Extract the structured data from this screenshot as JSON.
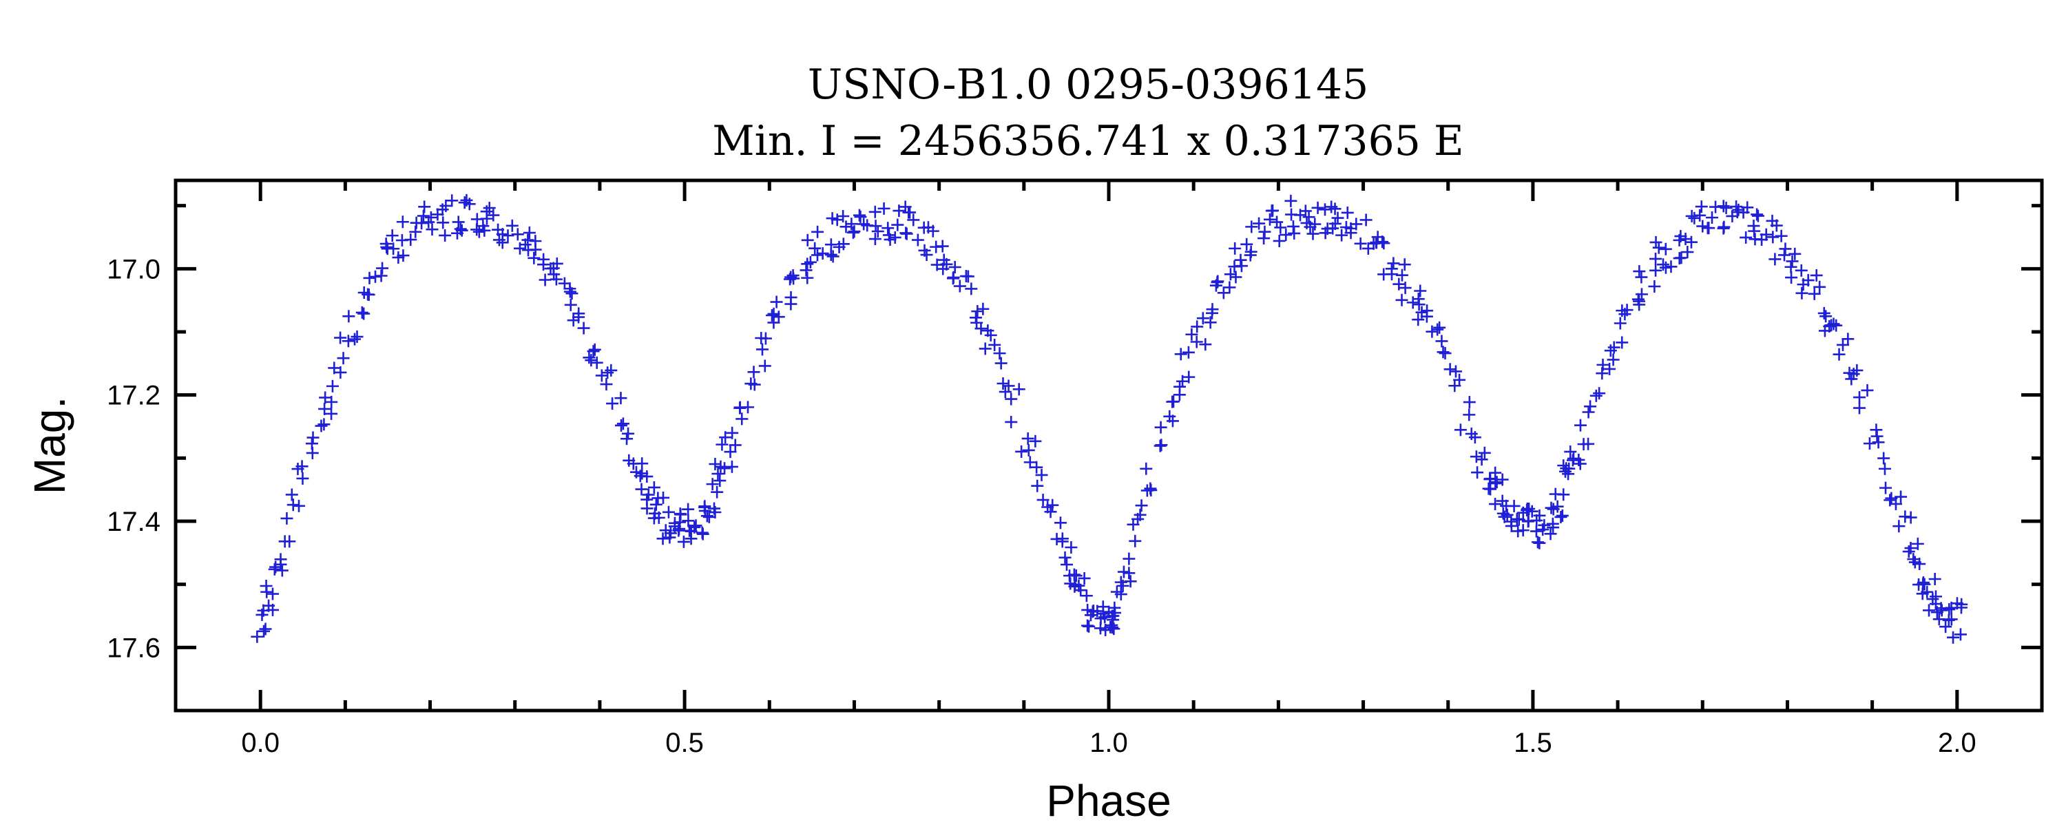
{
  "chart_data": {
    "type": "scatter",
    "title": "USNO-B1.0 0295-0396145",
    "subtitle": "Min. I = 2456356.741 x 0.317365 E",
    "xlabel": "Phase",
    "ylabel": "Mag.",
    "xlim": [
      -0.1,
      2.1
    ],
    "ylim": [
      17.7,
      16.86
    ],
    "y_inverted": true,
    "grid": false,
    "x_major_ticks": [
      0.0,
      0.5,
      1.0,
      1.5,
      2.0
    ],
    "x_tick_labels": [
      "0.0",
      "0.5",
      "1.0",
      "1.5",
      "2.0"
    ],
    "y_major_ticks": [
      17.0,
      17.2,
      17.4,
      17.6
    ],
    "y_tick_labels": [
      "17.0",
      "17.2",
      "17.4",
      "17.6"
    ],
    "marker": "+",
    "marker_color": "#1f1fd6",
    "light_curve_model": {
      "phase_min": 0.0,
      "mag_primary_min": 17.56,
      "mag_secondary_min": 17.41,
      "mag_max": 16.92,
      "phase_secondary_min": 0.51,
      "phase_max": [
        0.25,
        0.74
      ]
    },
    "series": [
      {
        "x": [
          0.0,
          0.01,
          0.02,
          0.03,
          0.04,
          0.05,
          0.06,
          0.07,
          0.08,
          0.09,
          0.1,
          0.11,
          0.12,
          0.13,
          0.14,
          0.15,
          0.16,
          0.17,
          0.18,
          0.19,
          0.2,
          0.21,
          0.22,
          0.23,
          0.24,
          0.25,
          0.26,
          0.27,
          0.28,
          0.29,
          0.3,
          0.31,
          0.32,
          0.33,
          0.34,
          0.35,
          0.36,
          0.37,
          0.38,
          0.39,
          0.4,
          0.41,
          0.42,
          0.43,
          0.44,
          0.45,
          0.46,
          0.47,
          0.48,
          0.49,
          0.5,
          0.51,
          0.52,
          0.53,
          0.54,
          0.55,
          0.56,
          0.57,
          0.58,
          0.59,
          0.6,
          0.61,
          0.62,
          0.63,
          0.64,
          0.65,
          0.66,
          0.67,
          0.68,
          0.69,
          0.7,
          0.71,
          0.72,
          0.73,
          0.74,
          0.75,
          0.76,
          0.77,
          0.78,
          0.79,
          0.8,
          0.81,
          0.82,
          0.83,
          0.84,
          0.85,
          0.86,
          0.87,
          0.88,
          0.89,
          0.9,
          0.91,
          0.92,
          0.93,
          0.94,
          0.95,
          0.96,
          0.97,
          0.98,
          0.99,
          1.0
        ],
        "y": [
          17.56,
          17.52,
          17.48,
          17.42,
          17.38,
          17.33,
          17.28,
          17.24,
          17.2,
          17.16,
          17.12,
          17.09,
          17.06,
          17.03,
          17.01,
          16.99,
          16.97,
          16.95,
          16.94,
          16.93,
          16.93,
          16.92,
          16.92,
          16.92,
          16.92,
          16.92,
          16.92,
          16.93,
          16.93,
          16.94,
          16.95,
          16.96,
          16.97,
          16.98,
          17.0,
          17.02,
          17.04,
          17.06,
          17.09,
          17.12,
          17.15,
          17.19,
          17.23,
          17.27,
          17.3,
          17.33,
          17.36,
          17.38,
          17.4,
          17.41,
          17.41,
          17.41,
          17.4,
          17.37,
          17.33,
          17.29,
          17.25,
          17.21,
          17.17,
          17.13,
          17.1,
          17.07,
          17.04,
          17.02,
          17.0,
          16.98,
          16.97,
          16.96,
          16.95,
          16.94,
          16.93,
          16.93,
          16.93,
          16.93,
          16.93,
          16.93,
          16.93,
          16.94,
          16.95,
          16.96,
          16.97,
          16.99,
          17.01,
          17.03,
          17.05,
          17.08,
          17.11,
          17.14,
          17.18,
          17.22,
          17.26,
          17.3,
          17.34,
          17.38,
          17.42,
          17.46,
          17.49,
          17.52,
          17.54,
          17.55,
          17.56
        ]
      }
    ]
  }
}
